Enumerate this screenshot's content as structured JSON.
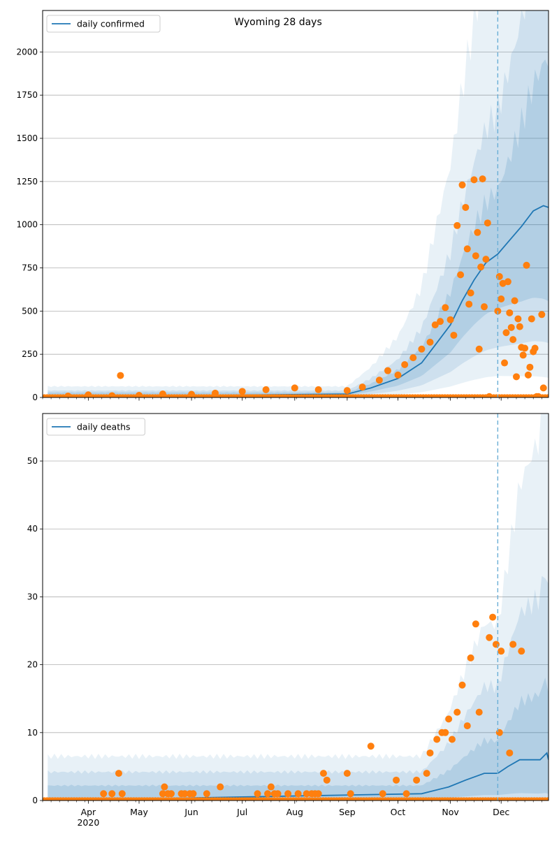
{
  "chart_data": [
    {
      "type": "line",
      "title": "Wyoming 28 days",
      "legend": {
        "label": "daily confirmed",
        "placement": "top-left"
      },
      "ylim": [
        0,
        2240
      ],
      "yticks": [
        0,
        250,
        500,
        750,
        1000,
        1250,
        1500,
        1750,
        2000
      ],
      "grid": "horizontal",
      "forecast_start": "2020-11-29",
      "model_median": [
        [
          "2020-09-01",
          20
        ],
        [
          "2020-09-15",
          55
        ],
        [
          "2020-10-01",
          110
        ],
        [
          "2020-10-15",
          200
        ],
        [
          "2020-10-22",
          290
        ],
        [
          "2020-11-01",
          420
        ],
        [
          "2020-11-08",
          560
        ],
        [
          "2020-11-15",
          680
        ],
        [
          "2020-11-22",
          780
        ],
        [
          "2020-11-29",
          830
        ],
        [
          "2020-12-06",
          910
        ],
        [
          "2020-12-13",
          990
        ],
        [
          "2020-12-20",
          1080
        ],
        [
          "2020-12-26",
          1110
        ],
        [
          "2020-12-29",
          1100
        ]
      ],
      "observed": [
        [
          "2020-03-20",
          8
        ],
        [
          "2020-04-01",
          15
        ],
        [
          "2020-04-15",
          10
        ],
        [
          "2020-04-20",
          127
        ],
        [
          "2020-05-01",
          12
        ],
        [
          "2020-05-15",
          20
        ],
        [
          "2020-06-01",
          18
        ],
        [
          "2020-06-15",
          25
        ],
        [
          "2020-07-01",
          35
        ],
        [
          "2020-07-15",
          45
        ],
        [
          "2020-08-01",
          55
        ],
        [
          "2020-08-15",
          45
        ],
        [
          "2020-09-01",
          40
        ],
        [
          "2020-09-10",
          60
        ],
        [
          "2020-09-20",
          100
        ],
        [
          "2020-09-25",
          155
        ],
        [
          "2020-10-01",
          130
        ],
        [
          "2020-10-05",
          190
        ],
        [
          "2020-10-10",
          230
        ],
        [
          "2020-10-15",
          280
        ],
        [
          "2020-10-20",
          320
        ],
        [
          "2020-10-23",
          420
        ],
        [
          "2020-10-26",
          440
        ],
        [
          "2020-10-29",
          520
        ],
        [
          "2020-11-01",
          450
        ],
        [
          "2020-11-03",
          360
        ],
        [
          "2020-11-05",
          995
        ],
        [
          "2020-11-07",
          710
        ],
        [
          "2020-11-08",
          1230
        ],
        [
          "2020-11-10",
          1100
        ],
        [
          "2020-11-11",
          860
        ],
        [
          "2020-11-12",
          540
        ],
        [
          "2020-11-13",
          605
        ],
        [
          "2020-11-15",
          1260
        ],
        [
          "2020-11-16",
          820
        ],
        [
          "2020-11-17",
          955
        ],
        [
          "2020-11-18",
          280
        ],
        [
          "2020-11-19",
          755
        ],
        [
          "2020-11-20",
          1265
        ],
        [
          "2020-11-21",
          525
        ],
        [
          "2020-11-22",
          800
        ],
        [
          "2020-11-23",
          1010
        ],
        [
          "2020-11-24",
          5
        ],
        [
          "2020-11-29",
          500
        ],
        [
          "2020-11-30",
          700
        ],
        [
          "2020-12-01",
          570
        ],
        [
          "2020-12-02",
          660
        ],
        [
          "2020-12-03",
          200
        ],
        [
          "2020-12-04",
          375
        ],
        [
          "2020-12-05",
          670
        ],
        [
          "2020-12-06",
          490
        ],
        [
          "2020-12-07",
          405
        ],
        [
          "2020-12-08",
          335
        ],
        [
          "2020-12-09",
          560
        ],
        [
          "2020-12-10",
          120
        ],
        [
          "2020-12-11",
          455
        ],
        [
          "2020-12-12",
          410
        ],
        [
          "2020-12-13",
          290
        ],
        [
          "2020-12-14",
          245
        ],
        [
          "2020-12-15",
          285
        ],
        [
          "2020-12-16",
          765
        ],
        [
          "2020-12-17",
          130
        ],
        [
          "2020-12-18",
          175
        ],
        [
          "2020-12-19",
          455
        ],
        [
          "2020-12-20",
          265
        ],
        [
          "2020-12-21",
          285
        ],
        [
          "2020-12-22",
          5
        ],
        [
          "2020-12-23",
          5
        ],
        [
          "2020-12-25",
          480
        ],
        [
          "2020-12-26",
          55
        ]
      ]
    },
    {
      "type": "line",
      "legend": {
        "label": "daily deaths",
        "placement": "top-left"
      },
      "ylim": [
        0,
        57
      ],
      "yticks": [
        0,
        10,
        20,
        30,
        40,
        50
      ],
      "grid": "horizontal",
      "forecast_start": "2020-11-29",
      "model_median": [
        [
          "2020-10-15",
          1
        ],
        [
          "2020-10-31",
          2
        ],
        [
          "2020-11-10",
          3
        ],
        [
          "2020-11-21",
          4
        ],
        [
          "2020-11-29",
          4
        ],
        [
          "2020-12-05",
          5
        ],
        [
          "2020-12-12",
          6
        ],
        [
          "2020-12-19",
          6
        ],
        [
          "2020-12-24",
          6
        ],
        [
          "2020-12-28",
          7
        ],
        [
          "2020-12-29",
          6
        ]
      ],
      "observed": [
        [
          "2020-04-10",
          1
        ],
        [
          "2020-04-15",
          1
        ],
        [
          "2020-04-19",
          4
        ],
        [
          "2020-04-21",
          1
        ],
        [
          "2020-05-15",
          1
        ],
        [
          "2020-05-16",
          2
        ],
        [
          "2020-05-18",
          1
        ],
        [
          "2020-05-20",
          1
        ],
        [
          "2020-05-26",
          1
        ],
        [
          "2020-05-28",
          1
        ],
        [
          "2020-05-31",
          1
        ],
        [
          "2020-06-02",
          1
        ],
        [
          "2020-06-10",
          1
        ],
        [
          "2020-06-18",
          2
        ],
        [
          "2020-07-10",
          1
        ],
        [
          "2020-07-16",
          1
        ],
        [
          "2020-07-18",
          2
        ],
        [
          "2020-07-20",
          1
        ],
        [
          "2020-07-22",
          1
        ],
        [
          "2020-07-28",
          1
        ],
        [
          "2020-08-03",
          1
        ],
        [
          "2020-08-08",
          1
        ],
        [
          "2020-08-11",
          1
        ],
        [
          "2020-08-13",
          1
        ],
        [
          "2020-08-15",
          1
        ],
        [
          "2020-08-18",
          4
        ],
        [
          "2020-08-20",
          3
        ],
        [
          "2020-09-01",
          4
        ],
        [
          "2020-09-03",
          1
        ],
        [
          "2020-09-15",
          8
        ],
        [
          "2020-09-22",
          1
        ],
        [
          "2020-09-30",
          3
        ],
        [
          "2020-10-06",
          1
        ],
        [
          "2020-10-12",
          3
        ],
        [
          "2020-10-18",
          4
        ],
        [
          "2020-10-20",
          7
        ],
        [
          "2020-10-24",
          9
        ],
        [
          "2020-10-27",
          10
        ],
        [
          "2020-10-29",
          10
        ],
        [
          "2020-10-31",
          12
        ],
        [
          "2020-11-02",
          9
        ],
        [
          "2020-11-05",
          13
        ],
        [
          "2020-11-08",
          17
        ],
        [
          "2020-11-11",
          11
        ],
        [
          "2020-11-13",
          21
        ],
        [
          "2020-11-16",
          26
        ],
        [
          "2020-11-18",
          13
        ],
        [
          "2020-11-24",
          24
        ],
        [
          "2020-11-26",
          27
        ],
        [
          "2020-11-28",
          23
        ],
        [
          "2020-11-30",
          10
        ],
        [
          "2020-12-01",
          22
        ],
        [
          "2020-12-06",
          7
        ],
        [
          "2020-12-08",
          23
        ],
        [
          "2020-12-13",
          22
        ]
      ]
    }
  ],
  "x_axis": {
    "start": "2020-03-05",
    "end": "2020-12-29",
    "months": [
      {
        "label": "Apr",
        "date": "2020-04-01"
      },
      {
        "label": "May",
        "date": "2020-05-01"
      },
      {
        "label": "Jun",
        "date": "2020-06-01"
      },
      {
        "label": "Jul",
        "date": "2020-07-01"
      },
      {
        "label": "Aug",
        "date": "2020-08-01"
      },
      {
        "label": "Sep",
        "date": "2020-09-01"
      },
      {
        "label": "Oct",
        "date": "2020-10-01"
      },
      {
        "label": "Nov",
        "date": "2020-11-01"
      },
      {
        "label": "Dec",
        "date": "2020-12-01"
      }
    ],
    "year_label": "2020"
  },
  "colors": {
    "line": "#1f77b4",
    "points": "#ff7f0e",
    "band": "#1f77b4",
    "grid": "#b0b0b0",
    "forecast_line": "#6aaed6"
  }
}
